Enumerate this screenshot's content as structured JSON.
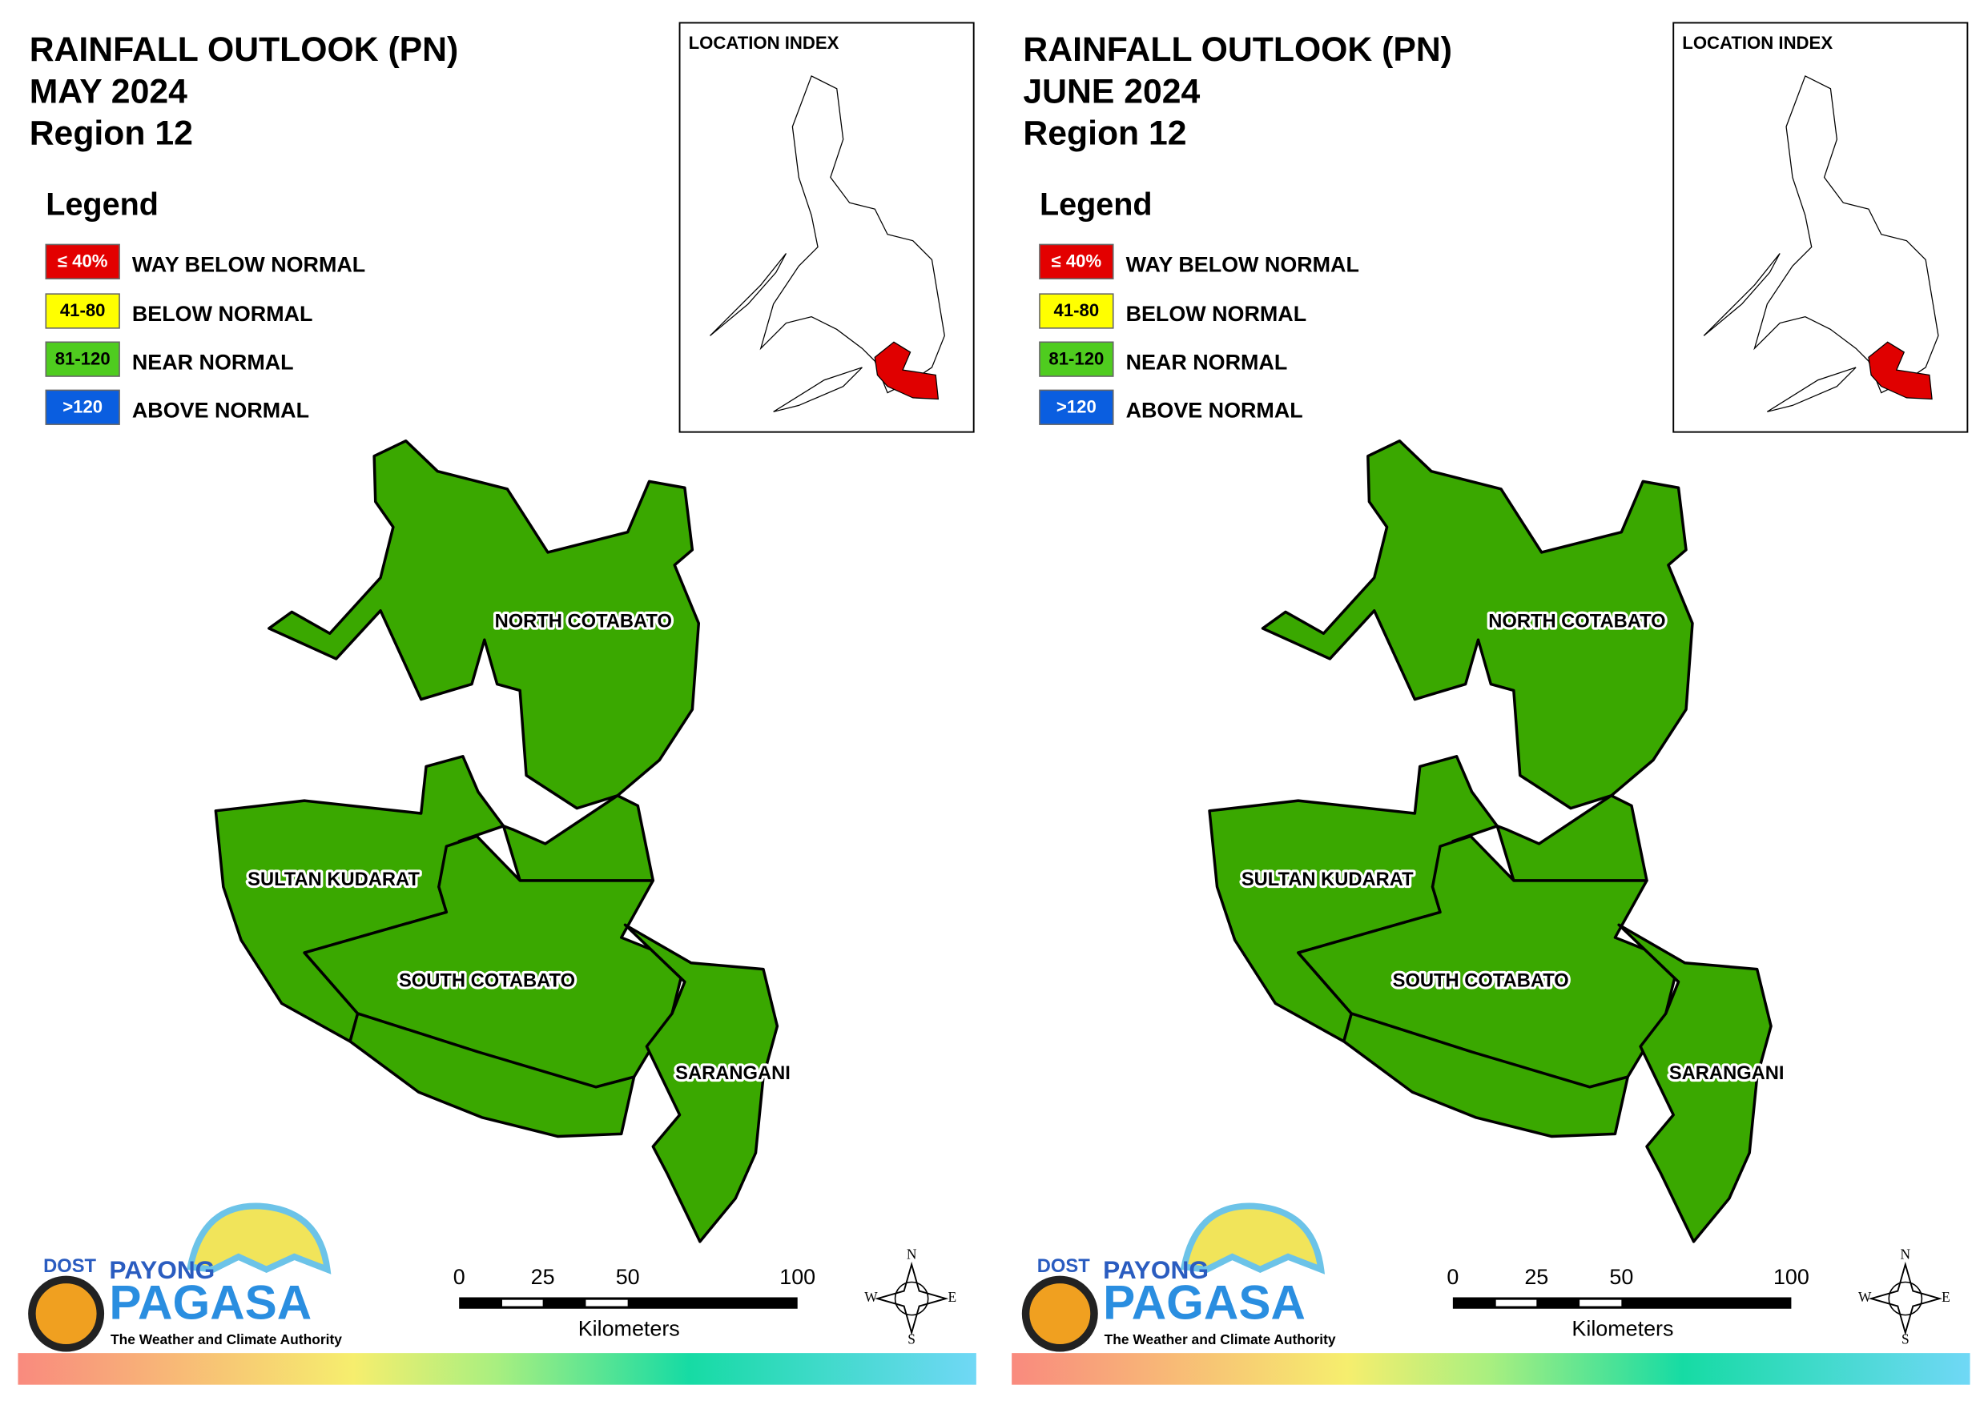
{
  "panels": [
    {
      "title": [
        "RAINFALL OUTLOOK (PN)",
        "MAY 2024",
        "Region 12"
      ],
      "legend_title": "Legend",
      "legend": [
        {
          "range": "≤ 40%",
          "label": "WAY BELOW NORMAL",
          "color": "#e30000"
        },
        {
          "range": "41-80",
          "label": "BELOW NORMAL",
          "color": "#ffff00"
        },
        {
          "range": "81-120",
          "label": "NEAR NORMAL",
          "color": "#4fcc1f"
        },
        {
          "range": ">120",
          "label": "ABOVE NORMAL",
          "color": "#0a5ee0"
        }
      ],
      "location_index": "LOCATION INDEX",
      "province_color": "#3aa800",
      "provinces": [
        "NORTH COTABATO",
        "SULTAN KUDARAT",
        "SOUTH COTABATO",
        "SARANGANI"
      ],
      "scale": {
        "ticks": [
          "0",
          "25",
          "50",
          "100"
        ],
        "unit": "Kilometers"
      },
      "compass": [
        "N",
        "E",
        "S",
        "W"
      ],
      "logo": {
        "agency": "DOST",
        "brand": "PAYONG",
        "name": "PAGASA",
        "tagline": "The Weather and Climate Authority"
      }
    },
    {
      "title": [
        "RAINFALL OUTLOOK (PN)",
        "JUNE 2024",
        "Region 12"
      ],
      "legend_title": "Legend",
      "legend": [
        {
          "range": "≤ 40%",
          "label": "WAY BELOW NORMAL",
          "color": "#e30000"
        },
        {
          "range": "41-80",
          "label": "BELOW NORMAL",
          "color": "#ffff00"
        },
        {
          "range": "81-120",
          "label": "NEAR NORMAL",
          "color": "#4fcc1f"
        },
        {
          "range": ">120",
          "label": "ABOVE NORMAL",
          "color": "#0a5ee0"
        }
      ],
      "location_index": "LOCATION INDEX",
      "province_color": "#3aa800",
      "provinces": [
        "NORTH COTABATO",
        "SULTAN KUDARAT",
        "SOUTH COTABATO",
        "SARANGANI"
      ],
      "scale": {
        "ticks": [
          "0",
          "25",
          "50",
          "100"
        ],
        "unit": "Kilometers"
      },
      "compass": [
        "N",
        "E",
        "S",
        "W"
      ],
      "logo": {
        "agency": "DOST",
        "brand": "PAYONG",
        "name": "PAGASA",
        "tagline": "The Weather and Climate Authority"
      }
    }
  ]
}
